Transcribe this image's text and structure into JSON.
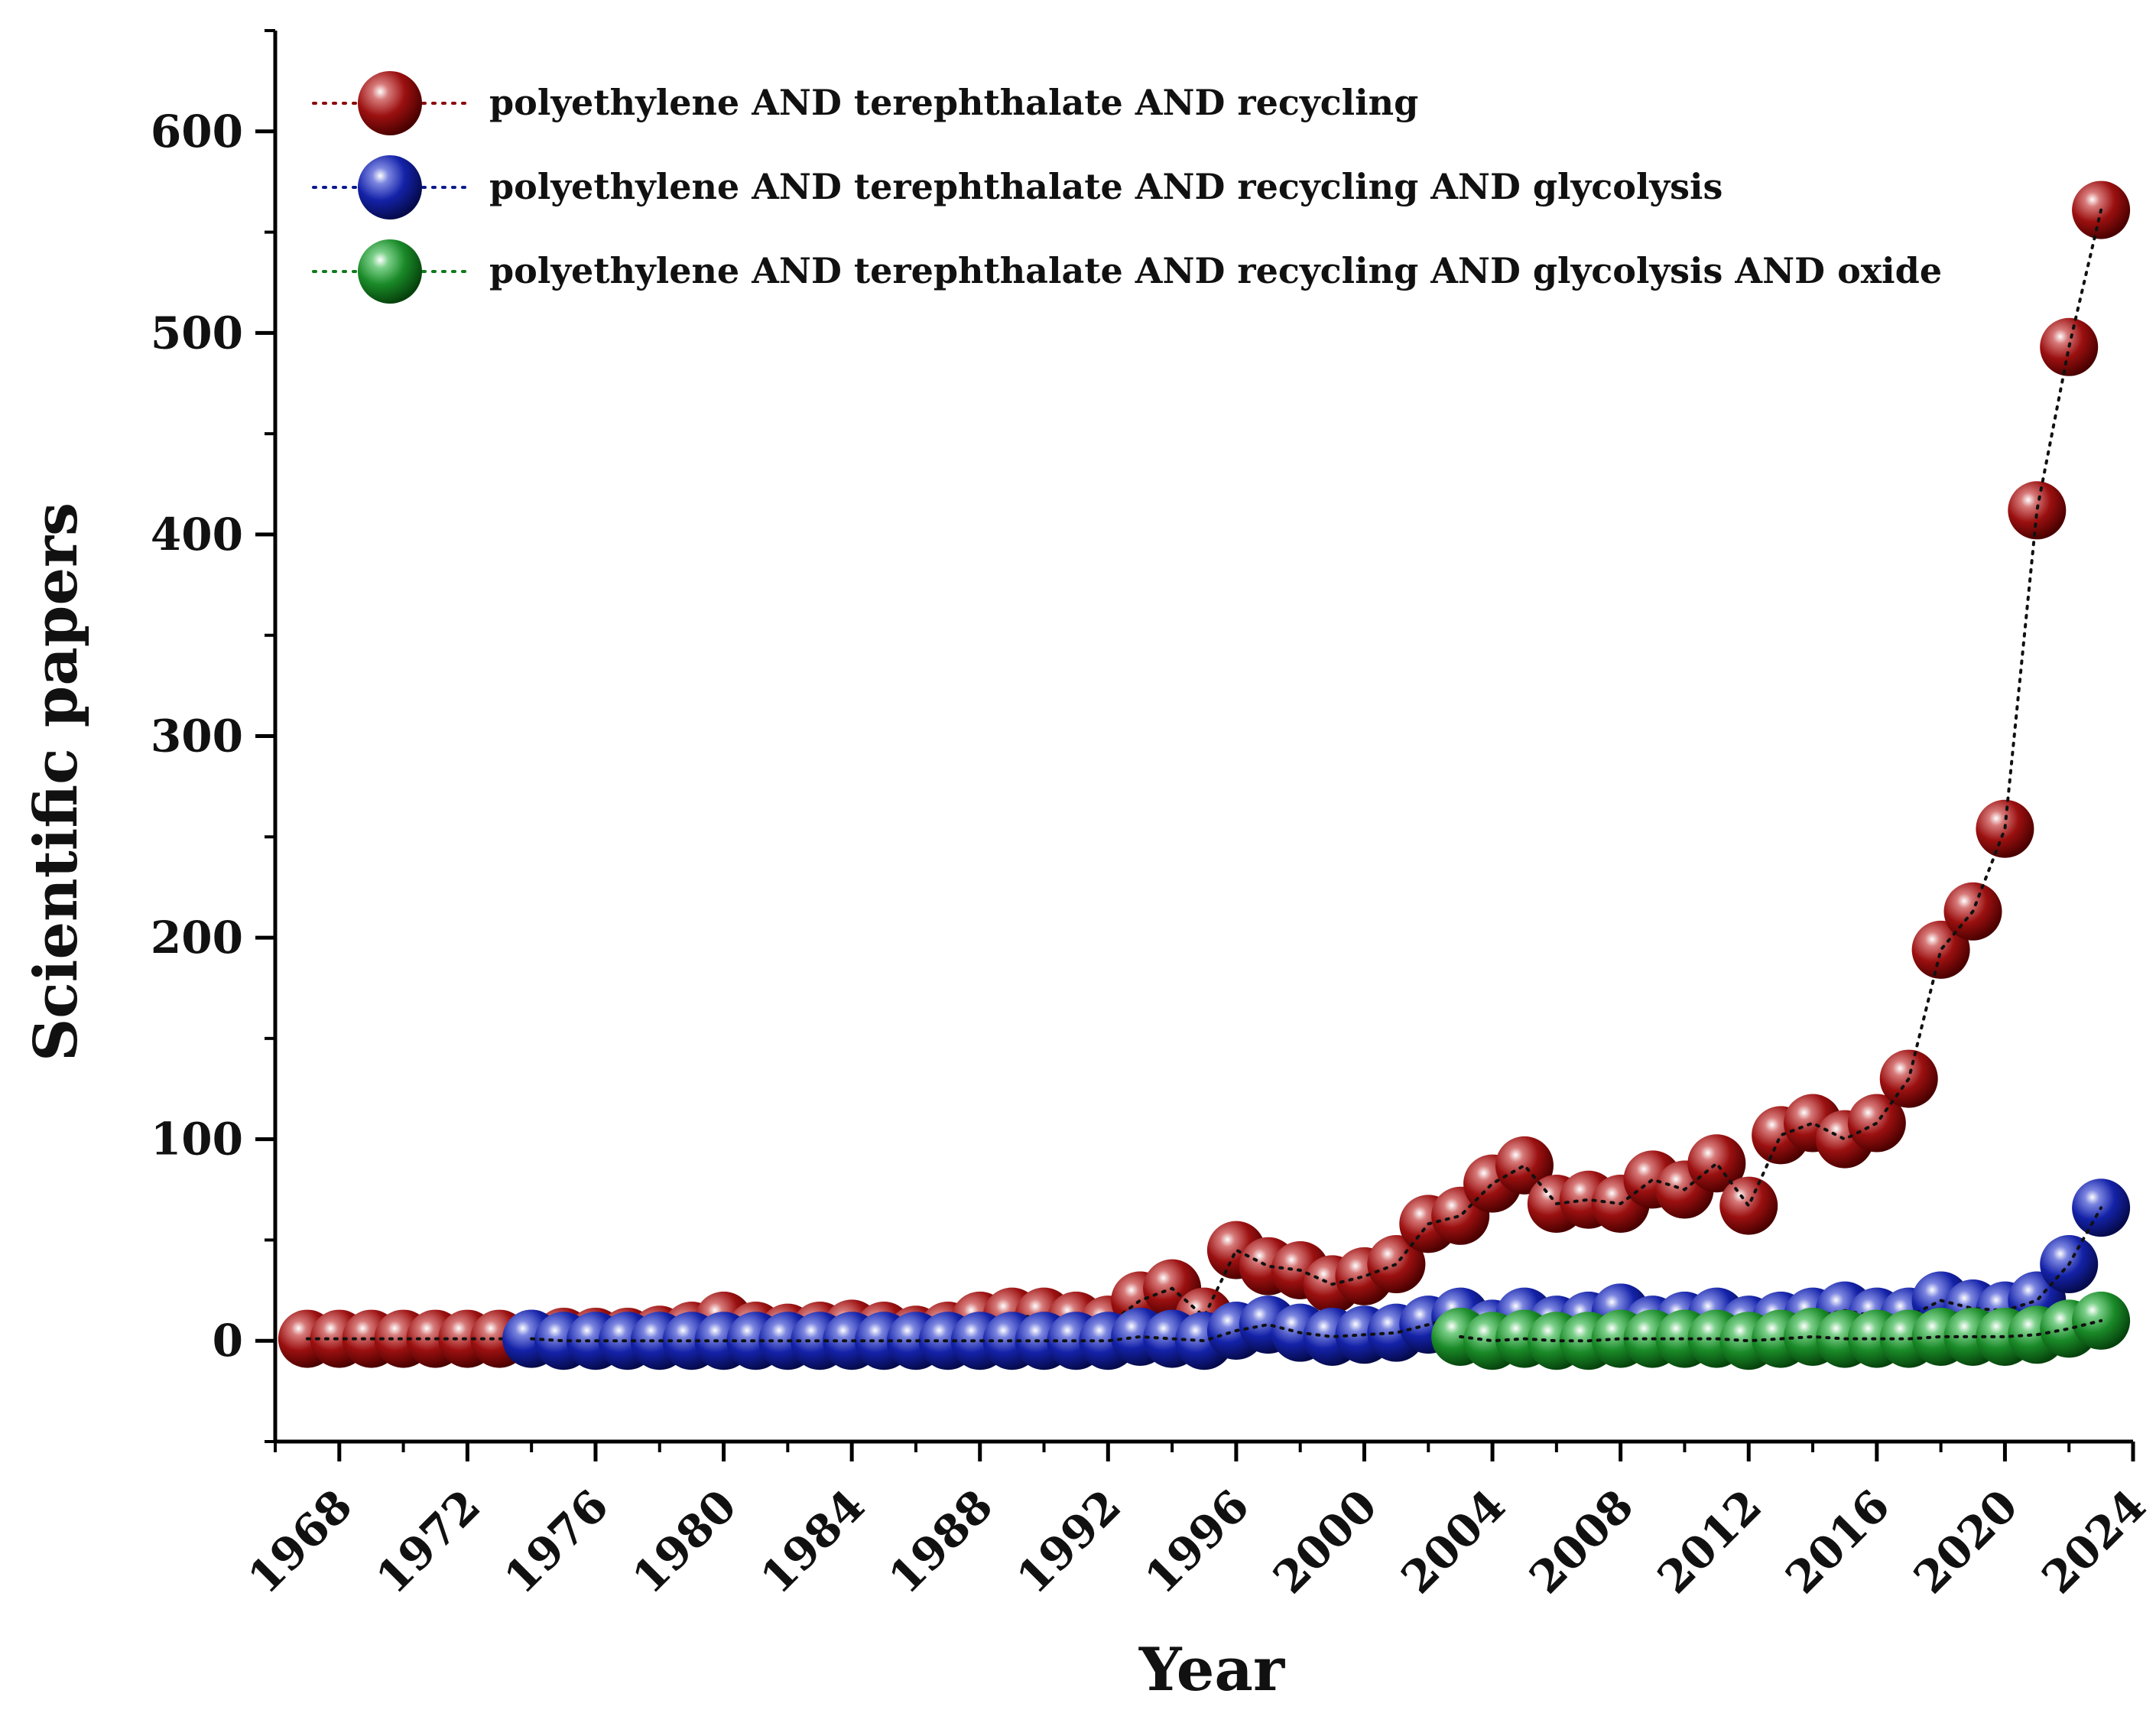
{
  "chart_data": {
    "type": "scatter",
    "title": "",
    "xlabel": "Year",
    "ylabel": "Scientific papers",
    "xlim": [
      1966,
      2024
    ],
    "ylim": [
      -50,
      650
    ],
    "xticks": [
      1968,
      1972,
      1976,
      1980,
      1984,
      1988,
      1992,
      1996,
      2000,
      2004,
      2008,
      2012,
      2016,
      2020,
      2024
    ],
    "yticks": [
      0,
      100,
      200,
      300,
      400,
      500,
      600
    ],
    "grid": false,
    "legend_position": "top-left",
    "series": [
      {
        "name": "polyethylene AND terephthalate AND recycling",
        "color": "#8b0a0a",
        "x": [
          1967,
          1968,
          1969,
          1970,
          1971,
          1972,
          1973,
          1974,
          1975,
          1976,
          1977,
          1978,
          1979,
          1980,
          1981,
          1982,
          1983,
          1984,
          1985,
          1986,
          1987,
          1988,
          1989,
          1990,
          1991,
          1992,
          1993,
          1994,
          1995,
          1996,
          1997,
          1998,
          1999,
          2000,
          2001,
          2002,
          2003,
          2004,
          2005,
          2006,
          2007,
          2008,
          2009,
          2010,
          2011,
          2012,
          2013,
          2014,
          2015,
          2016,
          2017,
          2018,
          2019,
          2020,
          2021,
          2022,
          2023
        ],
        "values": [
          1,
          1,
          1,
          1,
          1,
          1,
          1,
          1,
          2,
          2,
          2,
          3,
          5,
          10,
          5,
          4,
          5,
          6,
          5,
          3,
          5,
          10,
          12,
          12,
          10,
          8,
          20,
          26,
          12,
          45,
          37,
          35,
          28,
          32,
          38,
          58,
          62,
          78,
          87,
          68,
          70,
          68,
          80,
          75,
          88,
          67,
          102,
          108,
          100,
          108,
          130,
          194,
          213,
          254,
          412,
          493,
          561
        ]
      },
      {
        "name": "polyethylene AND terephthalate AND recycling AND glycolysis",
        "color": "#0a1a8e",
        "x": [
          1974,
          1975,
          1976,
          1977,
          1978,
          1979,
          1980,
          1981,
          1982,
          1983,
          1984,
          1985,
          1986,
          1987,
          1988,
          1989,
          1990,
          1991,
          1992,
          1993,
          1994,
          1995,
          1996,
          1997,
          1998,
          1999,
          2000,
          2001,
          2002,
          2003,
          2004,
          2005,
          2006,
          2007,
          2008,
          2009,
          2010,
          2011,
          2012,
          2013,
          2014,
          2015,
          2016,
          2017,
          2018,
          2019,
          2020,
          2021,
          2022,
          2023
        ],
        "values": [
          1,
          0,
          0,
          0,
          0,
          0,
          0,
          0,
          0,
          0,
          0,
          0,
          0,
          0,
          0,
          0,
          0,
          0,
          0,
          2,
          1,
          0,
          5,
          8,
          4,
          2,
          3,
          4,
          8,
          12,
          6,
          12,
          8,
          10,
          14,
          8,
          10,
          12,
          8,
          10,
          12,
          15,
          12,
          12,
          20,
          16,
          15,
          20,
          38,
          66
        ]
      },
      {
        "name": "polyethylene AND terephthalate AND recycling AND glycolysis AND oxide",
        "color": "#0f7a1c",
        "x": [
          2003,
          2004,
          2005,
          2006,
          2007,
          2008,
          2009,
          2010,
          2011,
          2012,
          2013,
          2014,
          2015,
          2016,
          2017,
          2018,
          2019,
          2020,
          2021,
          2022,
          2023
        ],
        "values": [
          2,
          0,
          1,
          0,
          0,
          1,
          1,
          1,
          1,
          0,
          1,
          2,
          1,
          1,
          1,
          2,
          2,
          2,
          3,
          6,
          10
        ]
      }
    ]
  }
}
